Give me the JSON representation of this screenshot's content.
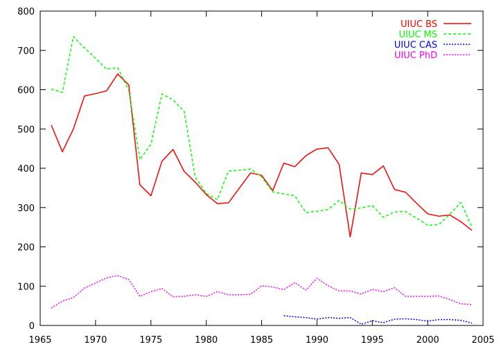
{
  "chart_data": {
    "type": "line",
    "title": "",
    "xlabel": "",
    "ylabel": "",
    "xlim": [
      1965,
      2005
    ],
    "ylim": [
      0,
      800
    ],
    "xticks": [
      1965,
      1970,
      1975,
      1980,
      1985,
      1990,
      1995,
      2000,
      2005
    ],
    "yticks": [
      0,
      100,
      200,
      300,
      400,
      500,
      600,
      700,
      800
    ],
    "grid": false,
    "legend_position": "top-right",
    "series": [
      {
        "name": "UIUC BS",
        "color": "#ff0000",
        "dash": "solid",
        "x": [
          1966,
          1967,
          1968,
          1969,
          1970,
          1971,
          1972,
          1973,
          1974,
          1975,
          1976,
          1977,
          1978,
          1979,
          1980,
          1981,
          1982,
          1983,
          1984,
          1985,
          1986,
          1987,
          1988,
          1989,
          1990,
          1991,
          1992,
          1993,
          1994,
          1995,
          1996,
          1997,
          1998,
          1999,
          2000,
          2001,
          2002,
          2003,
          2004
        ],
        "y": [
          510,
          442,
          500,
          584,
          590,
          597,
          640,
          612,
          358,
          330,
          418,
          448,
          392,
          365,
          333,
          310,
          312,
          350,
          388,
          382,
          343,
          413,
          404,
          432,
          449,
          452,
          410,
          225,
          388,
          384,
          406,
          346,
          339,
          311,
          284,
          278,
          281,
          264,
          242
        ]
      },
      {
        "name": "UIUC MS",
        "color": "#00ff00",
        "dash": "dashed",
        "x": [
          1966,
          1967,
          1968,
          1969,
          1970,
          1971,
          1972,
          1973,
          1974,
          1975,
          1976,
          1977,
          1978,
          1979,
          1980,
          1981,
          1982,
          1983,
          1984,
          1985,
          1986,
          1987,
          1988,
          1989,
          1990,
          1991,
          1992,
          1993,
          1994,
          1995,
          1996,
          1997,
          1998,
          1999,
          2000,
          2001,
          2002,
          2003,
          2004
        ],
        "y": [
          602,
          593,
          735,
          706,
          680,
          652,
          656,
          598,
          422,
          461,
          589,
          574,
          545,
          378,
          336,
          320,
          393,
          395,
          398,
          378,
          340,
          335,
          330,
          287,
          291,
          295,
          318,
          296,
          299,
          305,
          275,
          289,
          290,
          273,
          255,
          257,
          283,
          313,
          250
        ]
      },
      {
        "name": "UIUC CAS",
        "color": "#0000ff",
        "dash": "dotted",
        "x": [
          1987,
          1988,
          1989,
          1990,
          1991,
          1992,
          1993,
          1994,
          1995,
          1996,
          1997,
          1998,
          1999,
          2000,
          2001,
          2002,
          2003,
          2004
        ],
        "y": [
          25,
          22,
          20,
          16,
          20,
          18,
          20,
          3,
          12,
          7,
          16,
          17,
          15,
          11,
          15,
          15,
          13,
          6
        ]
      },
      {
        "name": "UIUC PhD",
        "color": "#ff00ff",
        "dash": "dotted",
        "x": [
          1966,
          1967,
          1968,
          1969,
          1970,
          1971,
          1972,
          1973,
          1974,
          1975,
          1976,
          1977,
          1978,
          1979,
          1980,
          1981,
          1982,
          1983,
          1984,
          1985,
          1986,
          1987,
          1988,
          1989,
          1990,
          1991,
          1992,
          1993,
          1994,
          1995,
          1996,
          1997,
          1998,
          1999,
          2000,
          2001,
          2002,
          2003,
          2004
        ],
        "y": [
          44,
          62,
          71,
          95,
          108,
          121,
          127,
          117,
          74,
          86,
          94,
          73,
          74,
          78,
          74,
          86,
          78,
          78,
          79,
          101,
          98,
          91,
          109,
          90,
          120,
          101,
          88,
          88,
          80,
          92,
          86,
          96,
          74,
          74,
          74,
          75,
          66,
          55,
          53
        ]
      }
    ]
  }
}
